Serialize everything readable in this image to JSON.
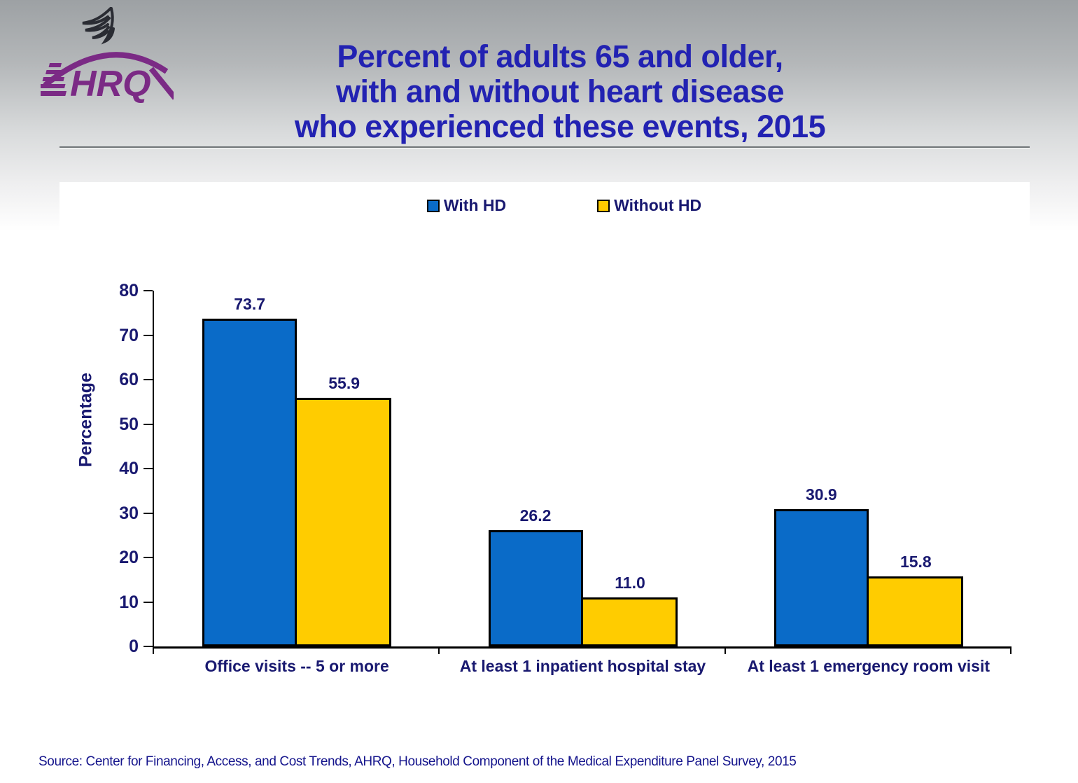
{
  "logo": {
    "org_abbreviation": "AHRQ",
    "eagle_icon": "hhs-eagle-icon"
  },
  "title": {
    "lines": [
      "Percent of adults 65 and older,",
      "with and without heart disease",
      "who experienced these events, 2015"
    ]
  },
  "colors": {
    "with_hd": "#0a6bc8",
    "without_hd": "#ffcc00",
    "bar_border": "#000000",
    "title_text": "#2222b2",
    "chart_text": "#191970",
    "ahrq_purple": "#7b2a85"
  },
  "chart_data": {
    "type": "bar",
    "title": "",
    "categories": [
      "Office visits -- 5 or more",
      "At least 1 inpatient hospital stay",
      "At least 1 emergency room visit"
    ],
    "series": [
      {
        "name": "With HD",
        "color_key": "with_hd",
        "values": [
          73.7,
          26.2,
          30.9
        ]
      },
      {
        "name": "Without HD",
        "color_key": "without_hd",
        "values": [
          55.9,
          11.0,
          15.8
        ]
      }
    ],
    "value_label_decimals": 1,
    "xlabel": "",
    "ylabel": "Percentage",
    "ylim": [
      0,
      80
    ],
    "ytick_step": 10,
    "grid": false,
    "legend_position": "top-center",
    "value_labels": true
  },
  "source": "Source: Center for Financing, Access, and Cost Trends, AHRQ, Household Component of the Medical Expenditure Panel Survey, 2015"
}
